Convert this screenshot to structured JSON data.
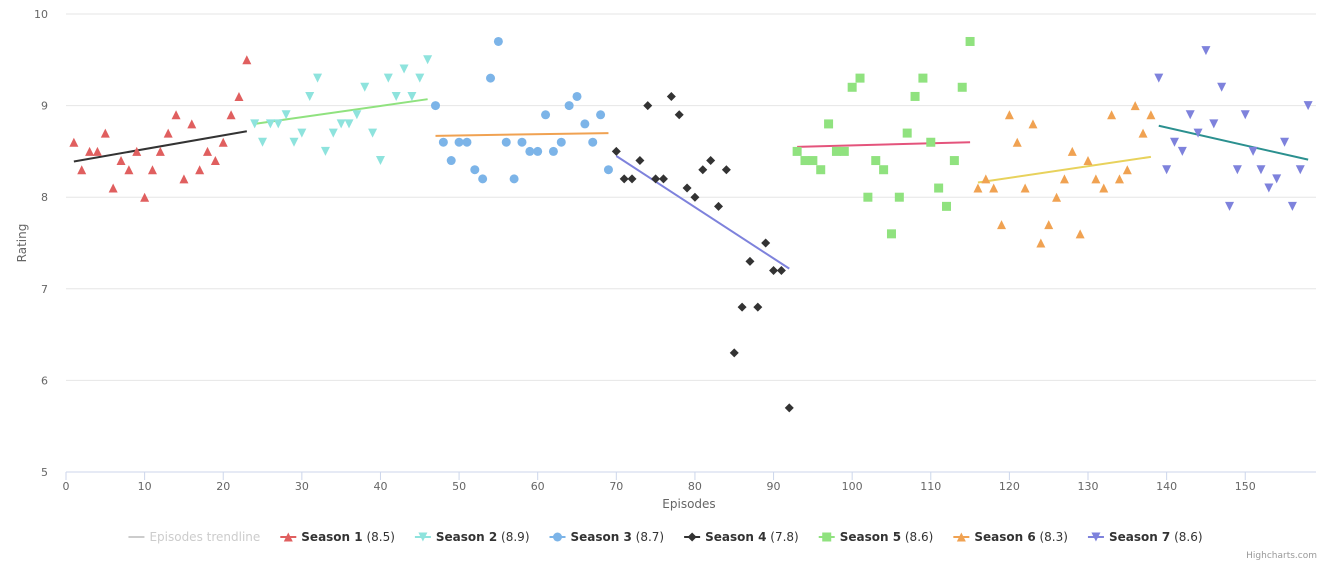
{
  "chart_data": {
    "type": "scatter",
    "title": "",
    "xlabel": "Episodes",
    "ylabel": "Rating",
    "xlim": [
      0,
      159
    ],
    "ylim": [
      5,
      10
    ],
    "x_ticks": [
      "0",
      "10",
      "20",
      "30",
      "40",
      "50",
      "60",
      "70",
      "80",
      "90",
      "100",
      "110",
      "120",
      "130",
      "140",
      "150"
    ],
    "y_ticks": [
      "5",
      "6",
      "7",
      "8",
      "9",
      "10"
    ],
    "grid": "horizontal",
    "legend_position": "bottom",
    "credits": "Highcharts.com",
    "trendline_legend": "Episodes trendline",
    "series": [
      {
        "name": "Season 1",
        "avg_label": "(8.5)",
        "color": "#e05f5f",
        "marker": "triangle",
        "trend_color": "#333333",
        "trend": [
          [
            1,
            8.39
          ],
          [
            23,
            8.72
          ]
        ],
        "points": [
          [
            1,
            8.6
          ],
          [
            2,
            8.3
          ],
          [
            3,
            8.5
          ],
          [
            4,
            8.5
          ],
          [
            5,
            8.7
          ],
          [
            6,
            8.1
          ],
          [
            7,
            8.4
          ],
          [
            8,
            8.3
          ],
          [
            9,
            8.5
          ],
          [
            10,
            8.0
          ],
          [
            11,
            8.3
          ],
          [
            12,
            8.5
          ],
          [
            13,
            8.7
          ],
          [
            14,
            8.9
          ],
          [
            15,
            8.2
          ],
          [
            16,
            8.8
          ],
          [
            17,
            8.3
          ],
          [
            18,
            8.5
          ],
          [
            19,
            8.4
          ],
          [
            20,
            8.6
          ],
          [
            21,
            8.9
          ],
          [
            22,
            9.1
          ],
          [
            23,
            9.5
          ]
        ]
      },
      {
        "name": "Season 2",
        "avg_label": "(8.9)",
        "color": "#8ee3dd",
        "marker": "triangle-down",
        "trend_color": "#90e27f",
        "trend": [
          [
            24,
            8.8
          ],
          [
            46,
            9.07
          ]
        ],
        "points": [
          [
            24,
            8.8
          ],
          [
            25,
            8.6
          ],
          [
            26,
            8.8
          ],
          [
            27,
            8.8
          ],
          [
            28,
            8.9
          ],
          [
            29,
            8.6
          ],
          [
            30,
            8.7
          ],
          [
            31,
            9.1
          ],
          [
            32,
            9.3
          ],
          [
            33,
            8.5
          ],
          [
            34,
            8.7
          ],
          [
            35,
            8.8
          ],
          [
            36,
            8.8
          ],
          [
            37,
            8.9
          ],
          [
            38,
            9.2
          ],
          [
            39,
            8.7
          ],
          [
            40,
            8.4
          ],
          [
            41,
            9.3
          ],
          [
            42,
            9.1
          ],
          [
            43,
            9.4
          ],
          [
            44,
            9.1
          ],
          [
            45,
            9.3
          ],
          [
            46,
            9.5
          ]
        ]
      },
      {
        "name": "Season 3",
        "avg_label": "(8.7)",
        "color": "#7cb4e8",
        "marker": "circle",
        "trend_color": "#f0a252",
        "trend": [
          [
            47,
            8.67
          ],
          [
            69,
            8.7
          ]
        ],
        "points": [
          [
            47,
            9.0
          ],
          [
            48,
            8.6
          ],
          [
            49,
            8.4
          ],
          [
            50,
            8.6
          ],
          [
            51,
            8.6
          ],
          [
            52,
            8.3
          ],
          [
            53,
            8.2
          ],
          [
            54,
            9.3
          ],
          [
            55,
            9.7
          ],
          [
            56,
            8.6
          ],
          [
            57,
            8.2
          ],
          [
            58,
            8.6
          ],
          [
            59,
            8.5
          ],
          [
            60,
            8.5
          ],
          [
            61,
            8.9
          ],
          [
            62,
            8.5
          ],
          [
            63,
            8.6
          ],
          [
            64,
            9.0
          ],
          [
            65,
            9.1
          ],
          [
            66,
            8.8
          ],
          [
            67,
            8.6
          ],
          [
            68,
            8.9
          ],
          [
            69,
            8.3
          ]
        ]
      },
      {
        "name": "Season 4",
        "avg_label": "(7.8)",
        "color": "#333333",
        "marker": "diamond",
        "trend_color": "#7e82dc",
        "trend": [
          [
            70,
            8.45
          ],
          [
            92,
            7.22
          ]
        ],
        "points": [
          [
            70,
            8.5
          ],
          [
            71,
            8.2
          ],
          [
            72,
            8.2
          ],
          [
            73,
            8.4
          ],
          [
            74,
            9.0
          ],
          [
            75,
            8.2
          ],
          [
            76,
            8.2
          ],
          [
            77,
            9.1
          ],
          [
            78,
            8.9
          ],
          [
            79,
            8.1
          ],
          [
            80,
            8.0
          ],
          [
            81,
            8.3
          ],
          [
            82,
            8.4
          ],
          [
            83,
            7.9
          ],
          [
            84,
            8.3
          ],
          [
            85,
            6.3
          ],
          [
            86,
            6.8
          ],
          [
            87,
            7.3
          ],
          [
            88,
            6.8
          ],
          [
            89,
            7.5
          ],
          [
            90,
            7.2
          ],
          [
            91,
            7.2
          ],
          [
            92,
            5.7
          ]
        ]
      },
      {
        "name": "Season 5",
        "avg_label": "(8.6)",
        "color": "#90e27f",
        "marker": "square",
        "trend_color": "#e4547c",
        "trend": [
          [
            93,
            8.55
          ],
          [
            115,
            8.6
          ]
        ],
        "points": [
          [
            93,
            8.5
          ],
          [
            94,
            8.4
          ],
          [
            95,
            8.4
          ],
          [
            96,
            8.3
          ],
          [
            97,
            8.8
          ],
          [
            98,
            8.5
          ],
          [
            99,
            8.5
          ],
          [
            100,
            9.2
          ],
          [
            101,
            9.3
          ],
          [
            102,
            8.0
          ],
          [
            103,
            8.4
          ],
          [
            104,
            8.3
          ],
          [
            105,
            7.6
          ],
          [
            106,
            8.0
          ],
          [
            107,
            8.7
          ],
          [
            108,
            9.1
          ],
          [
            109,
            9.3
          ],
          [
            110,
            8.6
          ],
          [
            111,
            8.1
          ],
          [
            112,
            7.9
          ],
          [
            113,
            8.4
          ],
          [
            114,
            9.2
          ],
          [
            115,
            9.7
          ]
        ]
      },
      {
        "name": "Season 6",
        "avg_label": "(8.3)",
        "color": "#f0a252",
        "marker": "triangle",
        "trend_color": "#e8d25c",
        "trend": [
          [
            116,
            8.16
          ],
          [
            138,
            8.44
          ]
        ],
        "points": [
          [
            116,
            8.1
          ],
          [
            117,
            8.2
          ],
          [
            118,
            8.1
          ],
          [
            119,
            7.7
          ],
          [
            120,
            8.9
          ],
          [
            121,
            8.6
          ],
          [
            122,
            8.1
          ],
          [
            123,
            8.8
          ],
          [
            124,
            7.5
          ],
          [
            125,
            7.7
          ],
          [
            126,
            8.0
          ],
          [
            127,
            8.2
          ],
          [
            128,
            8.5
          ],
          [
            129,
            7.6
          ],
          [
            130,
            8.4
          ],
          [
            131,
            8.2
          ],
          [
            132,
            8.1
          ],
          [
            133,
            8.9
          ],
          [
            134,
            8.2
          ],
          [
            135,
            8.3
          ],
          [
            136,
            9.0
          ],
          [
            137,
            8.7
          ],
          [
            138,
            8.9
          ]
        ]
      },
      {
        "name": "Season 7",
        "avg_label": "(8.6)",
        "color": "#7e82dc",
        "marker": "triangle-down",
        "trend_color": "#2b908f",
        "trend": [
          [
            139,
            8.78
          ],
          [
            158,
            8.41
          ]
        ],
        "points": [
          [
            139,
            9.3
          ],
          [
            140,
            8.3
          ],
          [
            141,
            8.6
          ],
          [
            142,
            8.5
          ],
          [
            143,
            8.9
          ],
          [
            144,
            8.7
          ],
          [
            145,
            9.6
          ],
          [
            146,
            8.8
          ],
          [
            147,
            9.2
          ],
          [
            148,
            7.9
          ],
          [
            149,
            8.3
          ],
          [
            150,
            8.9
          ],
          [
            151,
            8.5
          ],
          [
            152,
            8.3
          ],
          [
            153,
            8.1
          ],
          [
            154,
            8.2
          ],
          [
            155,
            8.6
          ],
          [
            156,
            7.9
          ],
          [
            157,
            8.3
          ],
          [
            158,
            9.0
          ]
        ]
      }
    ]
  }
}
